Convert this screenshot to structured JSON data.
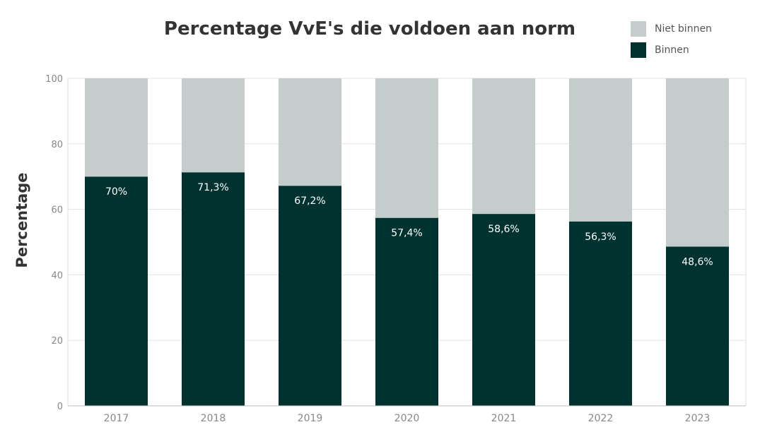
{
  "chart_data": {
    "type": "bar",
    "stacked": true,
    "title": "Percentage VvE's die voldoen aan norm",
    "ylabel": "Percentage",
    "xlabel": "",
    "ylim": [
      0,
      100
    ],
    "yticks": [
      "0",
      "20",
      "40",
      "60",
      "80",
      "100"
    ],
    "categories": [
      "2017",
      "2018",
      "2019",
      "2020",
      "2021",
      "2022",
      "2023"
    ],
    "series": [
      {
        "name": "Binnen",
        "color": "#003330",
        "values": [
          70,
          71.3,
          67.2,
          57.4,
          58.6,
          56.3,
          48.6
        ],
        "labels": [
          "70%",
          "71,3%",
          "67,2%",
          "57,4%",
          "58,6%",
          "56,3%",
          "48,6%"
        ]
      },
      {
        "name": "Niet binnen",
        "color": "#c4cdcb",
        "values": [
          30,
          28.7,
          32.8,
          42.6,
          41.4,
          43.7,
          51.4
        ]
      }
    ],
    "legend": [
      "Niet binnen",
      "Binnen"
    ],
    "legend_position": "top-right",
    "grid": true
  }
}
